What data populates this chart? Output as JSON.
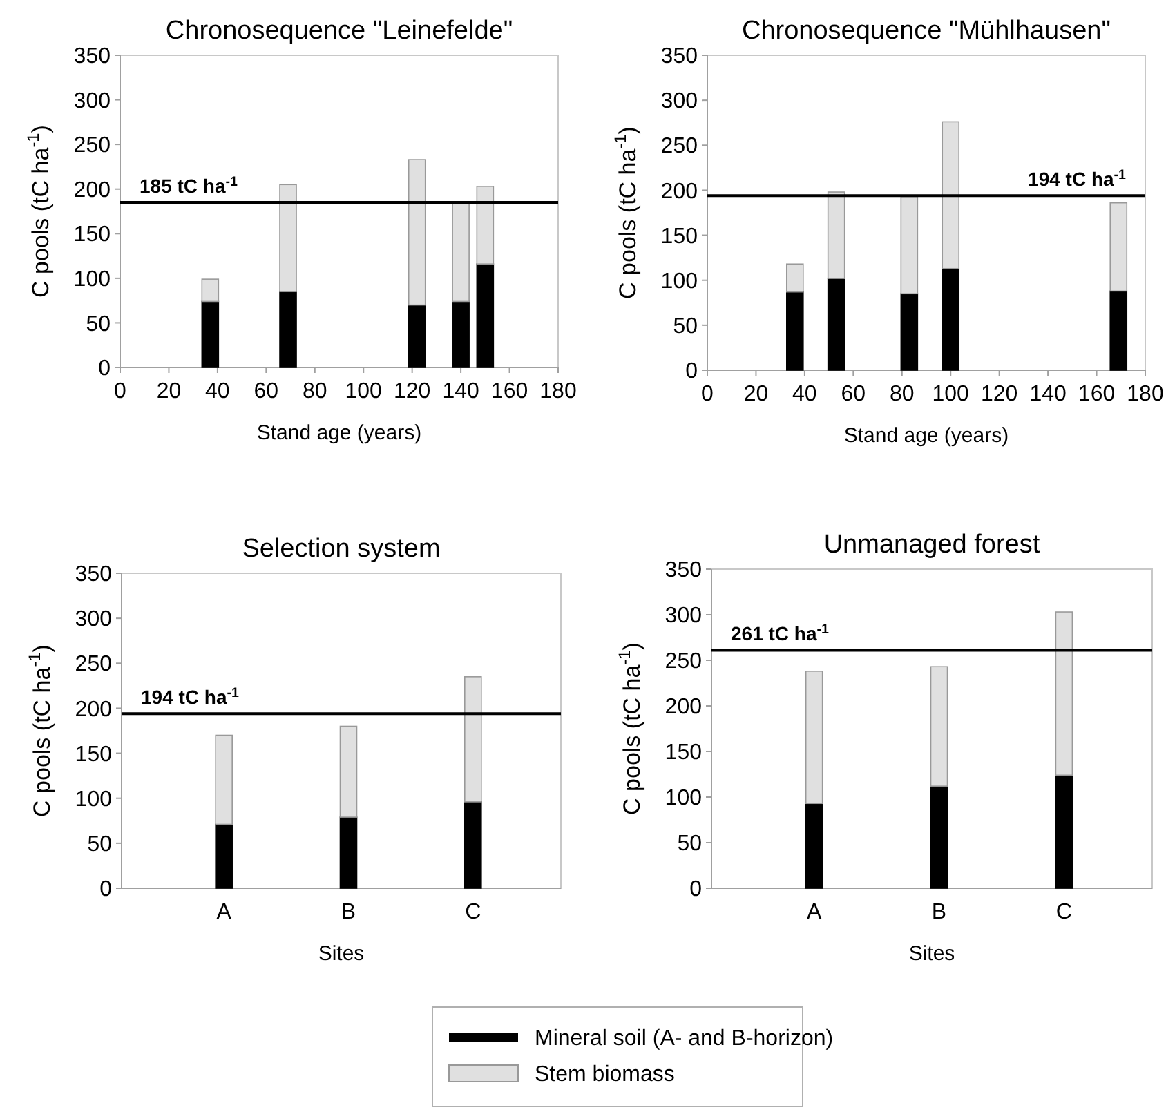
{
  "chart_data": [
    {
      "type": "bar",
      "stacked": true,
      "title": "Chronosequence \"Leinefelde\"",
      "xlabel": "Stand age (years)",
      "ylabel": "C pools (tC ha$^{-1}$)",
      "x": [
        37,
        69,
        122,
        140,
        150
      ],
      "xlim": [
        0,
        180
      ],
      "xticks": [
        0,
        20,
        40,
        60,
        80,
        100,
        120,
        140,
        160,
        180
      ],
      "ylim": [
        0,
        350
      ],
      "yticks": [
        0,
        50,
        100,
        150,
        200,
        250,
        300,
        350
      ],
      "series": [
        {
          "color": "#000000",
          "values": [
            74,
            85,
            70,
            74,
            116
          ]
        },
        {
          "color": "#e0e0e0",
          "values": [
            25,
            120,
            163,
            111,
            87
          ]
        }
      ],
      "ref_lines": [
        {
          "axis": "y",
          "value": 185,
          "label": "185 tC ha$^{-1}$",
          "color": "#000000"
        }
      ]
    },
    {
      "type": "bar",
      "stacked": true,
      "title": "Chronosequence \"Mühlhausen\"",
      "xlabel": "Stand age (years)",
      "ylabel": "C pools (tC ha$^{-1}$)",
      "x": [
        36,
        53,
        83,
        100,
        169
      ],
      "xlim": [
        0,
        180
      ],
      "xticks": [
        0,
        20,
        40,
        60,
        80,
        100,
        120,
        140,
        160,
        180
      ],
      "ylim": [
        0,
        350
      ],
      "yticks": [
        0,
        50,
        100,
        150,
        200,
        250,
        300,
        350
      ],
      "series": [
        {
          "color": "#000000",
          "values": [
            87,
            102,
            85,
            113,
            88
          ]
        },
        {
          "color": "#e0e0e0",
          "values": [
            31,
            96,
            108,
            163,
            98
          ]
        }
      ],
      "ref_lines": [
        {
          "axis": "y",
          "value": 194,
          "label": "194 tC ha$^{-1}$",
          "color": "#000000"
        }
      ]
    },
    {
      "type": "bar",
      "stacked": true,
      "title": "Selection system",
      "xlabel": "Sites",
      "ylabel": "C pools (tC ha$^{-1}$)",
      "categories": [
        "A",
        "B",
        "C"
      ],
      "ylim": [
        0,
        350
      ],
      "yticks": [
        0,
        50,
        100,
        150,
        200,
        250,
        300,
        350
      ],
      "legend": "bottom right",
      "series": [
        {
          "name": "Mineral soil (A- and B-horizon)",
          "color": "#000000",
          "values": [
            71,
            79,
            96
          ]
        },
        {
          "name": "Stem biomass",
          "color": "#e0e0e0",
          "values": [
            99,
            101,
            139
          ]
        }
      ],
      "ref_lines": [
        {
          "axis": "y",
          "value": 194,
          "label": "194 tC ha$^{-1}$",
          "color": "#000000"
        }
      ]
    },
    {
      "type": "bar",
      "stacked": true,
      "title": "Unmanaged forest",
      "xlabel": "Sites",
      "ylabel": "C pools (tC ha$^{-1}$)",
      "categories": [
        "A",
        "B",
        "C"
      ],
      "ylim": [
        0,
        350
      ],
      "yticks": [
        0,
        50,
        100,
        150,
        200,
        250,
        300,
        350
      ],
      "series": [
        {
          "color": "#000000",
          "values": [
            93,
            112,
            124
          ]
        },
        {
          "color": "#e0e0e0",
          "values": [
            145,
            131,
            179
          ]
        }
      ],
      "ref_lines": [
        {
          "axis": "y",
          "value": 261,
          "label": "261 tC ha$^{-1}$",
          "color": "#000000"
        }
      ]
    }
  ]
}
